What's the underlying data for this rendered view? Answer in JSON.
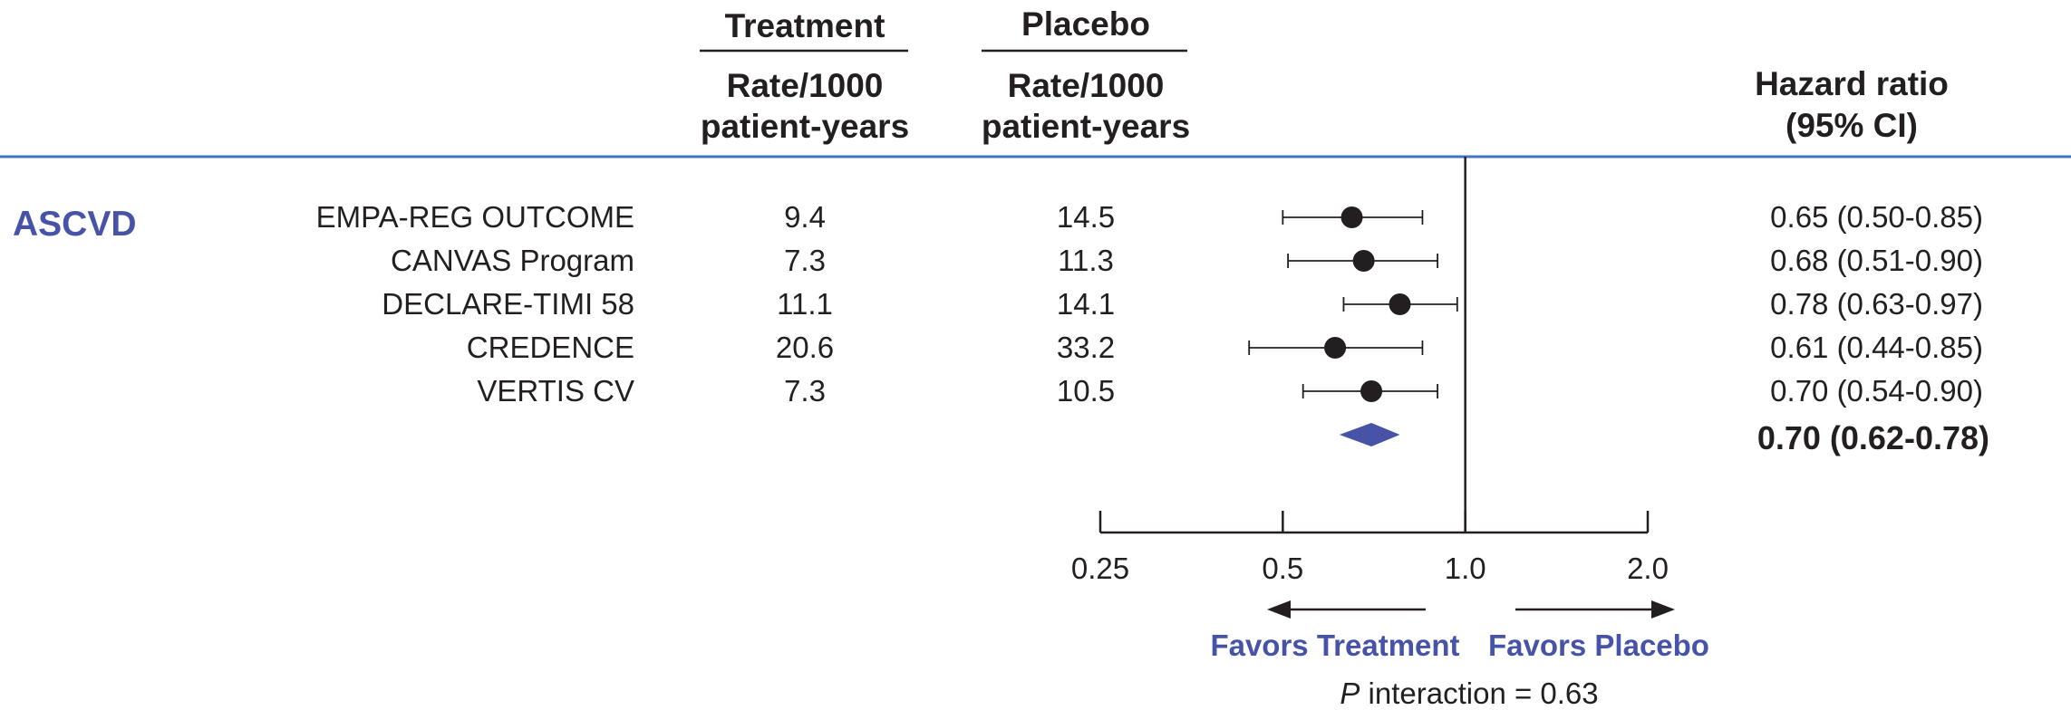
{
  "header": {
    "treatment_title": "Treatment",
    "placebo_title": "Placebo",
    "treatment_rate_line1": "Rate/1000",
    "treatment_rate_line2": "patient-years",
    "placebo_rate_line1": "Rate/1000",
    "placebo_rate_line2": "patient-years",
    "hr_line1": "Hazard ratio",
    "hr_line2": "(95% CI)"
  },
  "group_label": "ASCVD",
  "favors_treatment": "Favors Treatment",
  "favors_placebo": "Favors Placebo",
  "p_interaction_label": "P",
  "p_interaction_text": " interaction = 0.63",
  "colors": {
    "accent": "#4753a8",
    "rule": "#4472c4",
    "ink": "#231f20"
  },
  "chart_data": {
    "type": "forest",
    "x_scale": "log",
    "xlim": [
      0.25,
      2.0
    ],
    "ticks": [
      {
        "value": 0.25,
        "label": "0.25"
      },
      {
        "value": 0.5,
        "label": "0.5"
      },
      {
        "value": 1.0,
        "label": "1.0"
      },
      {
        "value": 2.0,
        "label": "2.0"
      }
    ],
    "reference_line": 1.0,
    "studies": [
      {
        "name": "EMPA-REG OUTCOME",
        "treatment_rate": "9.4",
        "placebo_rate": "14.5",
        "hr": 0.65,
        "lo": 0.5,
        "hi": 0.85,
        "hr_text": "0.65 (0.50-0.85)"
      },
      {
        "name": "CANVAS Program",
        "treatment_rate": "7.3",
        "placebo_rate": "11.3",
        "hr": 0.68,
        "lo": 0.51,
        "hi": 0.9,
        "hr_text": "0.68 (0.51-0.90)"
      },
      {
        "name": "DECLARE-TIMI 58",
        "treatment_rate": "11.1",
        "placebo_rate": "14.1",
        "hr": 0.78,
        "lo": 0.63,
        "hi": 0.97,
        "hr_text": "0.78 (0.63-0.97)"
      },
      {
        "name": "CREDENCE",
        "treatment_rate": "20.6",
        "placebo_rate": "33.2",
        "hr": 0.61,
        "lo": 0.44,
        "hi": 0.85,
        "hr_text": "0.61 (0.44-0.85)"
      },
      {
        "name": "VERTIS CV",
        "treatment_rate": "7.3",
        "placebo_rate": "10.5",
        "hr": 0.7,
        "lo": 0.54,
        "hi": 0.9,
        "hr_text": "0.70 (0.54-0.90)"
      }
    ],
    "pooled": {
      "hr": 0.7,
      "lo": 0.62,
      "hi": 0.78,
      "hr_text": "0.70 (0.62-0.78)"
    }
  }
}
